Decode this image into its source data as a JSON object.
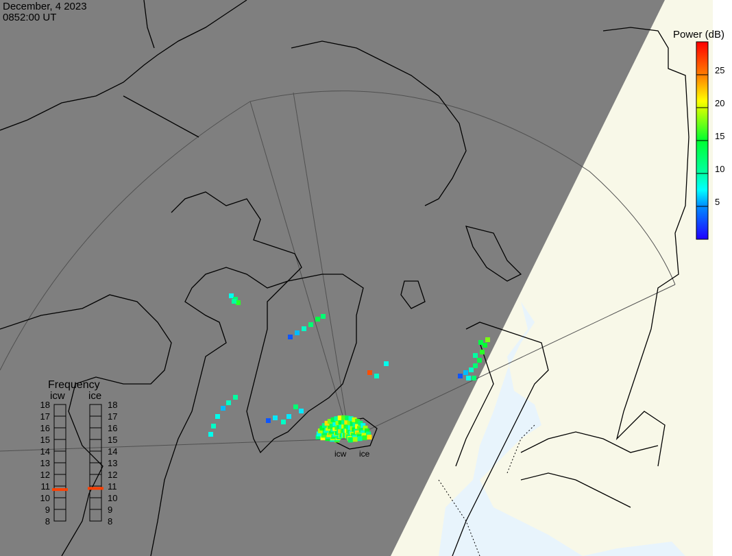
{
  "header": {
    "date": "December, 4 2023",
    "time": "0852:00 UT"
  },
  "colorbar": {
    "title": "Power (dB)",
    "range": [
      0,
      30
    ],
    "ticks": [
      "5",
      "10",
      "15",
      "20",
      "25"
    ],
    "tick_values": [
      5,
      10,
      15,
      20,
      25
    ]
  },
  "frequency_panel": {
    "title": "Frequency",
    "unit_range_mhz": [
      8,
      18
    ],
    "tick_labels": [
      "18",
      "17",
      "16",
      "15",
      "14",
      "13",
      "12",
      "11",
      "10",
      "9",
      "8"
    ],
    "radars": [
      {
        "name": "icw",
        "frequency_mhz": 10.7
      },
      {
        "name": "ice",
        "frequency_mhz": 10.8
      }
    ],
    "marker_color": "#ff4000"
  },
  "radar_labels": {
    "icw": "icw",
    "ice": "ice"
  },
  "colors": {
    "night": "#7f7f7f",
    "day_land": "#f8f8e8",
    "day_sea": "#e8f4fc",
    "coast": "#000000",
    "grid": "#505050"
  }
}
